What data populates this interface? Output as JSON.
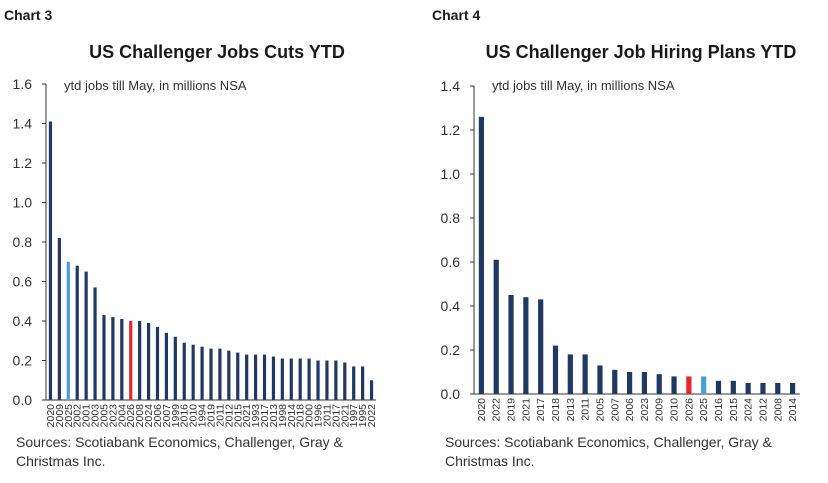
{
  "colors": {
    "bar": "#1f3864",
    "highlight_red": "#e8262b",
    "highlight_blue": "#4a9fd8",
    "axis": "#333333"
  },
  "charts": [
    {
      "label": "Chart 3",
      "source": "Sources: Scotiabank Economics, Challenger, Gray & Christmas Inc.",
      "chart_data": {
        "type": "bar",
        "title": "US Challenger Jobs Cuts YTD",
        "annotation": "ytd jobs till May, in millions NSA",
        "xlabel": "",
        "ylabel": "",
        "ylim": [
          0,
          1.6
        ],
        "yticks": [
          "0.0",
          "0.2",
          "0.4",
          "0.6",
          "0.8",
          "1.0",
          "1.2",
          "1.4",
          "1.6"
        ],
        "categories": [
          "2020",
          "2009",
          "2025",
          "2002",
          "2001",
          "2003",
          "2005",
          "2023",
          "2004",
          "2026",
          "2008",
          "2024",
          "2006",
          "2007",
          "1999",
          "2016",
          "2010",
          "1994",
          "2019",
          "2011",
          "2012",
          "2015",
          "2021",
          "1993",
          "2017",
          "2013",
          "1998",
          "2014",
          "2018",
          "2000",
          "1996",
          "2011",
          "2017",
          "2021",
          "1997",
          "1995",
          "2022"
        ],
        "values": [
          1.41,
          0.82,
          0.7,
          0.68,
          0.65,
          0.57,
          0.43,
          0.42,
          0.41,
          0.4,
          0.4,
          0.39,
          0.37,
          0.34,
          0.32,
          0.29,
          0.28,
          0.27,
          0.26,
          0.26,
          0.25,
          0.24,
          0.23,
          0.23,
          0.23,
          0.22,
          0.21,
          0.21,
          0.21,
          0.21,
          0.2,
          0.2,
          0.2,
          0.19,
          0.17,
          0.17,
          0.1
        ],
        "highlights": {
          "2": "blue",
          "9": "red"
        }
      }
    },
    {
      "label": "Chart 4",
      "source": "Sources: Scotiabank Economics, Challenger, Gray & Christmas Inc.",
      "chart_data": {
        "type": "bar",
        "title": "US Challenger Job Hiring Plans YTD",
        "annotation": "ytd jobs till May, in millions NSA",
        "xlabel": "",
        "ylabel": "",
        "ylim": [
          0,
          1.4
        ],
        "yticks": [
          "0.0",
          "0.2",
          "0.4",
          "0.6",
          "0.8",
          "1.0",
          "1.2",
          "1.4"
        ],
        "categories": [
          "2020",
          "2022",
          "2019",
          "2021",
          "2017",
          "2018",
          "2013",
          "2011",
          "2005",
          "2007",
          "2006",
          "2023",
          "2009",
          "2010",
          "2026",
          "2025",
          "2016",
          "2015",
          "2024",
          "2012",
          "2008",
          "2014"
        ],
        "values": [
          1.26,
          0.61,
          0.45,
          0.44,
          0.43,
          0.22,
          0.18,
          0.18,
          0.13,
          0.11,
          0.1,
          0.1,
          0.09,
          0.08,
          0.08,
          0.08,
          0.06,
          0.06,
          0.05,
          0.05,
          0.05,
          0.05
        ],
        "highlights": {
          "14": "red",
          "15": "blue"
        }
      }
    }
  ]
}
